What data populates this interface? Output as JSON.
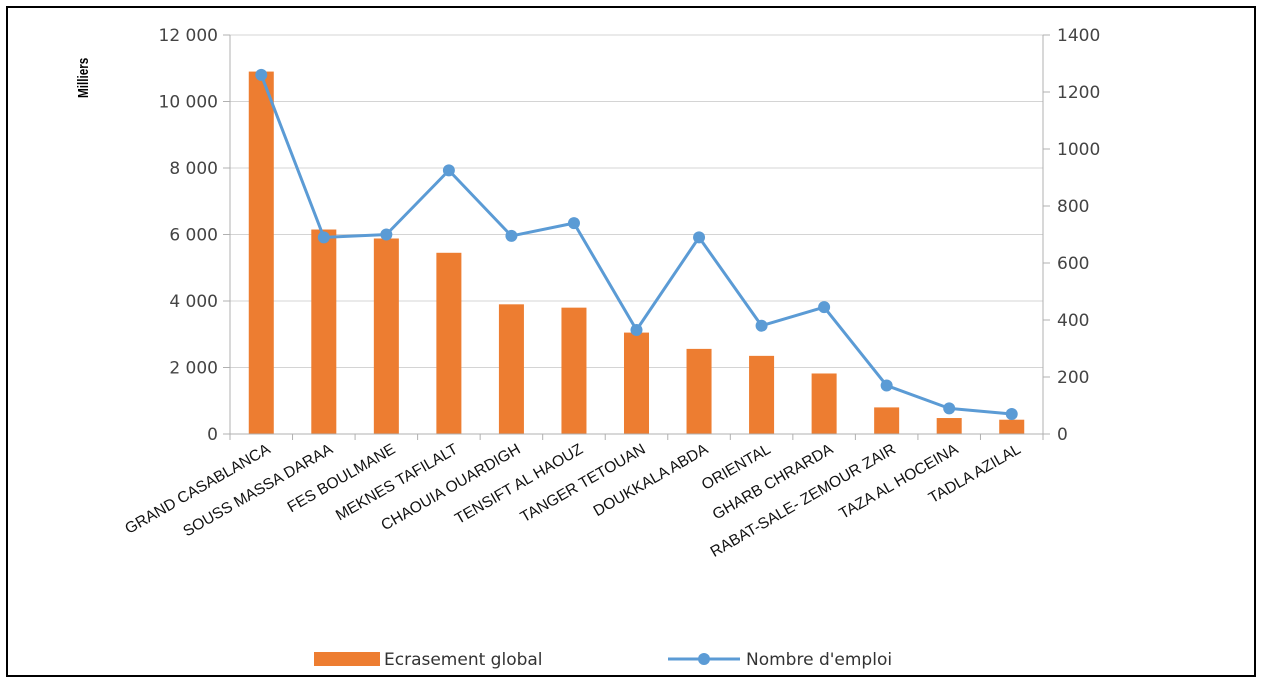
{
  "chart_data": {
    "type": "bar",
    "categories": [
      "GRAND CASABLANCA",
      "SOUSS MASSA DARAA",
      "FES BOULMANE",
      "MEKNES TAFILALT",
      "CHAOUIA OUARDIGH",
      "TENSIFT AL HAOUZ",
      "TANGER TETOUAN",
      "DOUKKALA ABDA",
      "ORIENTAL",
      "GHARB CHRARDA",
      "RABAT-SALE- ZEMOUR ZAIR",
      "TAZA AL HOCEINA",
      "TADLA AZILAL"
    ],
    "series": [
      {
        "name": "Ecrasement global",
        "type": "bar",
        "axis": "left",
        "color": "#ED7D31",
        "values": [
          10900,
          6150,
          5880,
          5450,
          3900,
          3800,
          3050,
          2560,
          2350,
          1820,
          800,
          480,
          430
        ]
      },
      {
        "name": "Nombre d'emploi",
        "type": "line",
        "axis": "right",
        "color": "#5B9BD5",
        "values": [
          1260,
          690,
          700,
          925,
          695,
          740,
          365,
          690,
          380,
          445,
          170,
          90,
          70
        ]
      }
    ],
    "y_left": {
      "unit_label": "Milliers",
      "range": [
        0,
        12000
      ],
      "ticks": [
        0,
        2000,
        4000,
        6000,
        8000,
        10000,
        12000
      ],
      "tick_labels": [
        "0",
        "2 000",
        "4 000",
        "6 000",
        "8 000",
        "10 000",
        "12 000"
      ]
    },
    "y_right": {
      "range": [
        0,
        1400
      ],
      "ticks": [
        0,
        200,
        400,
        600,
        800,
        1000,
        1200,
        1400
      ],
      "tick_labels": [
        "0",
        "200",
        "400",
        "600",
        "800",
        "1000",
        "1200",
        "1400"
      ]
    },
    "grid": true,
    "legend_position": "bottom"
  }
}
